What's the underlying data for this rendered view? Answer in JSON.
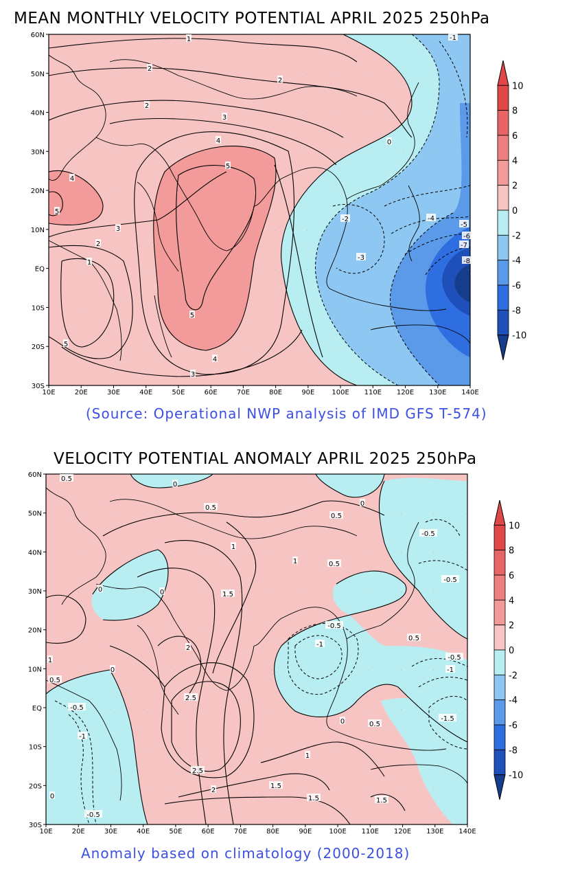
{
  "panels": [
    {
      "title": "MEAN MONTHLY VELOCITY POTENTIAL APRIL 2025 250hPa",
      "caption": "(Source: Operational NWP analysis of IMD GFS T-574)",
      "lat_labels": [
        "60N",
        "50N",
        "40N",
        "30N",
        "20N",
        "10N",
        "EQ",
        "10S",
        "20S",
        "30S"
      ],
      "lon_labels": [
        "10E",
        "20E",
        "30E",
        "40E",
        "50E",
        "60E",
        "70E",
        "80E",
        "90E",
        "100E",
        "110E",
        "120E",
        "130E",
        "140E"
      ],
      "contour_labels": [
        "1",
        "2",
        "2",
        "2",
        "3",
        "4",
        "5",
        "4",
        "5",
        "3",
        "2",
        "1",
        "5",
        "5",
        "4",
        "3",
        "0",
        "-2",
        "-3",
        "-4",
        "-5",
        "-6",
        "-7",
        "-8",
        "-1"
      ],
      "colorbar_labels": [
        "10",
        "8",
        "6",
        "4",
        "2",
        "0",
        "-2",
        "-4",
        "-6",
        "-8",
        "-10"
      ]
    },
    {
      "title": "VELOCITY POTENTIAL ANOMALY APRIL 2025 250hPa",
      "caption": "Anomaly based on climatology (2000-2018)",
      "lat_labels": [
        "60N",
        "50N",
        "40N",
        "30N",
        "20N",
        "10N",
        "EQ",
        "10S",
        "20S",
        "30S"
      ],
      "lon_labels": [
        "10E",
        "20E",
        "30E",
        "40E",
        "50E",
        "60E",
        "70E",
        "80E",
        "90E",
        "100E",
        "110E",
        "120E",
        "130E",
        "140E"
      ],
      "contour_labels": [
        "0.5",
        "0",
        "0.5",
        "0.5",
        "1",
        "1",
        "0.5",
        "0",
        "-0.5",
        "-0.5",
        "1.5",
        "2",
        "2.5",
        "2.5",
        "2",
        "1.5",
        "1.5",
        "1",
        "-0.5",
        "-1",
        "0",
        "0.5",
        "1.5",
        "-0.5",
        "-1",
        "-1.5",
        "0",
        "0",
        "-0.5",
        "-1",
        "0",
        "-0.5",
        "1",
        "0.5",
        "0",
        "0.5"
      ],
      "colorbar_labels": [
        "10",
        "8",
        "6",
        "4",
        "2",
        "0",
        "-2",
        "-4",
        "-6",
        "-8",
        "-10"
      ]
    }
  ],
  "colors": {
    "pos_0_2": "#f7c4c4",
    "pos_2_4": "#f39a9a",
    "pos_4_6": "#ee7f7f",
    "pos_6_8": "#e86565",
    "pos_8_10": "#e04848",
    "neg_0_2": "#b8eef2",
    "neg_2_4": "#8ec8f2",
    "neg_4_6": "#5a9ae8",
    "neg_6_8": "#2f6ee0",
    "neg_8_10": "#1f4fb8",
    "neg_10": "#163c8c",
    "caption": "#3b4fe0"
  }
}
